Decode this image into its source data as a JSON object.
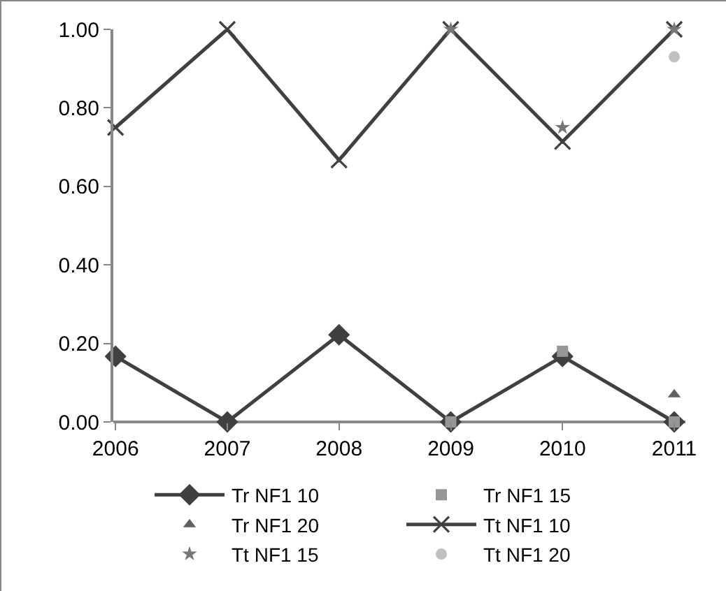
{
  "chart_data": {
    "type": "line",
    "categories": [
      "2006",
      "2007",
      "2008",
      "2009",
      "2010",
      "2011"
    ],
    "series": [
      {
        "name": "Tr NF1 10",
        "marker": "diamond",
        "color": "#404040",
        "values": [
          0.167,
          0,
          0.222,
          0,
          0.167,
          0
        ]
      },
      {
        "name": "Tr NF1 15",
        "type": "scatter",
        "marker": "square",
        "color": "#969696",
        "values": [
          null,
          null,
          null,
          0,
          0.18,
          0
        ]
      },
      {
        "name": "Tr NF1 20",
        "type": "scatter",
        "marker": "triangle",
        "color": "#606060",
        "values": [
          null,
          null,
          null,
          null,
          null,
          0.07
        ]
      },
      {
        "name": "Tt NF1 10",
        "marker": "cross",
        "color": "#404040",
        "values": [
          0.75,
          1,
          0.667,
          1,
          0.714,
          1
        ]
      },
      {
        "name": "Tt NF1 15",
        "type": "scatter",
        "marker": "star",
        "color": "#777777",
        "values": [
          null,
          null,
          null,
          1,
          0.75,
          1
        ]
      },
      {
        "name": "Tt NF1 20",
        "type": "scatter",
        "marker": "circle",
        "color": "#c0c0c0",
        "values": [
          null,
          null,
          null,
          null,
          null,
          0.93
        ]
      }
    ],
    "ylim": [
      0,
      1
    ],
    "yticks": [
      {
        "value": 0,
        "label": "0.00"
      },
      {
        "value": 0.2,
        "label": "0.20"
      },
      {
        "value": 0.4,
        "label": "0.40"
      },
      {
        "value": 0.6,
        "label": "0.60"
      },
      {
        "value": 0.8,
        "label": "0.80"
      },
      {
        "value": 1,
        "label": "1.00"
      }
    ],
    "grid": false,
    "legend": "bottom",
    "line_style": "solid"
  }
}
